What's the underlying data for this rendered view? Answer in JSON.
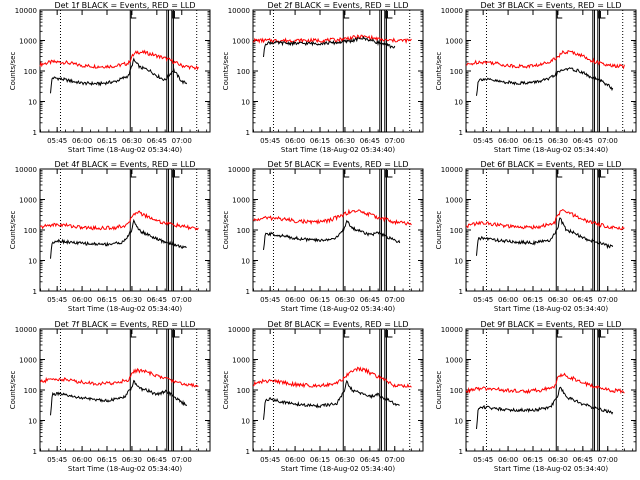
{
  "colors": {
    "events": "#000000",
    "lld": "#ff0000",
    "axes": "#000000"
  },
  "chart_data": [
    {
      "type": "line",
      "title": "Det 1f BLACK = Events, RED = LLD",
      "xlabel": "Start Time (18-Aug-02 05:34:40)",
      "ylabel": "Counts/sec",
      "xlim": [
        "05:34:40",
        "07:17"
      ],
      "ylim": [
        1,
        10000
      ],
      "yscale": "log",
      "grid": false,
      "xticks": [
        "05:45",
        "06:00",
        "06:15",
        "06:30",
        "06:45",
        "07:00"
      ],
      "yticks": [
        "1",
        "10",
        "100",
        "1000",
        "10000"
      ],
      "series": [
        {
          "color": "red",
          "x": [
            "05:34",
            "05:42",
            "05:50",
            "06:00",
            "06:10",
            "06:20",
            "06:28",
            "06:30",
            "06:33",
            "06:38",
            "06:43",
            "06:48",
            "06:52",
            "06:56",
            "07:00",
            "07:05",
            "07:10"
          ],
          "y": [
            160,
            200,
            190,
            150,
            140,
            145,
            180,
            300,
            420,
            400,
            340,
            280,
            240,
            190,
            150,
            135,
            120
          ]
        },
        {
          "color": "black",
          "x": [
            "05:41",
            "05:42",
            "05:45",
            "05:55",
            "06:00",
            "06:10",
            "06:20",
            "06:28",
            "06:30",
            "06:31",
            "06:35",
            "06:40",
            "06:45",
            "06:50",
            "06:55",
            "07:00",
            "07:03"
          ],
          "y": [
            20,
            60,
            58,
            45,
            40,
            38,
            45,
            70,
            150,
            230,
            130,
            110,
            70,
            50,
            110,
            45,
            40
          ]
        }
      ],
      "markers": {
        "dotted": [
          "05:47",
          "07:09"
        ],
        "solid": [
          "06:29",
          "06:51",
          "06:52",
          "06:54",
          "06:55"
        ]
      }
    },
    {
      "type": "line",
      "title": "Det 2f BLACK = Events, RED = LLD",
      "xlabel": "Start Time (18-Aug-02 05:34:40)",
      "ylabel": "Counts/sec",
      "xlim": [
        "05:34:40",
        "07:17"
      ],
      "ylim": [
        1,
        10000
      ],
      "yscale": "log",
      "grid": false,
      "xticks": [
        "05:45",
        "06:00",
        "06:15",
        "06:30",
        "06:45",
        "07:00"
      ],
      "yticks": [
        "1",
        "10",
        "100",
        "1000",
        "10000"
      ],
      "series": [
        {
          "color": "red",
          "x": [
            "05:34",
            "05:45",
            "06:00",
            "06:15",
            "06:25",
            "06:35",
            "06:40",
            "06:45",
            "06:50",
            "06:55",
            "07:00",
            "07:10"
          ],
          "y": [
            1000,
            1000,
            1000,
            1000,
            1050,
            1250,
            1350,
            1250,
            1100,
            1000,
            1000,
            1000
          ]
        },
        {
          "color": "black",
          "x": [
            "05:41",
            "05:42",
            "05:45",
            "06:00",
            "06:15",
            "06:25",
            "06:35",
            "06:40",
            "06:45",
            "06:50",
            "06:55",
            "07:00"
          ],
          "y": [
            300,
            800,
            850,
            800,
            800,
            850,
            1000,
            1200,
            1050,
            850,
            700,
            600
          ]
        }
      ],
      "markers": {
        "dotted": [
          "05:47",
          "07:09"
        ],
        "solid": [
          "06:29",
          "06:51",
          "06:52",
          "06:54",
          "06:55"
        ]
      }
    },
    {
      "type": "line",
      "title": "Det 3f BLACK = Events, RED = LLD",
      "xlabel": "Start Time (18-Aug-02 05:34:40)",
      "ylabel": "Counts/sec",
      "xlim": [
        "05:34:40",
        "07:17"
      ],
      "ylim": [
        1,
        10000
      ],
      "yscale": "log",
      "grid": false,
      "xticks": [
        "05:45",
        "06:00",
        "06:15",
        "06:30",
        "06:45",
        "07:00"
      ],
      "yticks": [
        "1",
        "10",
        "100",
        "1000",
        "10000"
      ],
      "series": [
        {
          "color": "red",
          "x": [
            "05:34",
            "05:42",
            "05:50",
            "06:00",
            "06:10",
            "06:20",
            "06:28",
            "06:33",
            "06:38",
            "06:43",
            "06:48",
            "06:55",
            "07:00",
            "07:10"
          ],
          "y": [
            150,
            200,
            190,
            150,
            140,
            160,
            250,
            400,
            420,
            350,
            250,
            180,
            150,
            140
          ]
        },
        {
          "color": "black",
          "x": [
            "05:41",
            "05:42",
            "05:45",
            "05:55",
            "06:05",
            "06:15",
            "06:25",
            "06:30",
            "06:35",
            "06:40",
            "06:45",
            "06:50",
            "06:55",
            "07:00",
            "07:03"
          ],
          "y": [
            15,
            50,
            55,
            45,
            40,
            42,
            55,
            90,
            120,
            110,
            90,
            60,
            50,
            35,
            25
          ]
        }
      ],
      "markers": {
        "dotted": [
          "05:47",
          "07:09"
        ],
        "solid": [
          "06:29",
          "06:51",
          "06:52",
          "06:54",
          "06:55"
        ]
      }
    },
    {
      "type": "line",
      "title": "Det 4f BLACK = Events, RED = LLD",
      "xlabel": "Start Time (18-Aug-02 05:34:40)",
      "ylabel": "Counts/sec",
      "xlim": [
        "05:34:40",
        "07:17"
      ],
      "ylim": [
        1,
        10000
      ],
      "yscale": "log",
      "grid": false,
      "xticks": [
        "05:45",
        "06:00",
        "06:15",
        "06:30",
        "06:45",
        "07:00"
      ],
      "yticks": [
        "1",
        "10",
        "100",
        "1000",
        "10000"
      ],
      "series": [
        {
          "color": "red",
          "x": [
            "05:34",
            "05:42",
            "05:50",
            "06:00",
            "06:10",
            "06:20",
            "06:28",
            "06:30",
            "06:33",
            "06:38",
            "06:43",
            "06:48",
            "06:55",
            "07:00",
            "07:10"
          ],
          "y": [
            120,
            150,
            145,
            120,
            115,
            120,
            150,
            300,
            400,
            300,
            230,
            180,
            150,
            130,
            110
          ]
        },
        {
          "color": "black",
          "x": [
            "05:41",
            "05:42",
            "05:45",
            "05:55",
            "06:05",
            "06:15",
            "06:25",
            "06:30",
            "06:31",
            "06:35",
            "06:40",
            "06:45",
            "06:50",
            "06:55",
            "07:00",
            "07:03"
          ],
          "y": [
            12,
            40,
            45,
            38,
            35,
            34,
            40,
            100,
            200,
            90,
            70,
            50,
            40,
            35,
            28,
            25
          ]
        }
      ],
      "markers": {
        "dotted": [
          "05:47",
          "07:09"
        ],
        "solid": [
          "06:29",
          "06:51",
          "06:52",
          "06:54",
          "06:55"
        ]
      }
    },
    {
      "type": "line",
      "title": "Det 5f BLACK = Events, RED = LLD",
      "xlabel": "Start Time (18-Aug-02 05:34:40)",
      "ylabel": "Counts/sec",
      "xlim": [
        "05:34:40",
        "07:17"
      ],
      "ylim": [
        1,
        10000
      ],
      "yscale": "log",
      "grid": false,
      "xticks": [
        "05:45",
        "06:00",
        "06:15",
        "06:30",
        "06:45",
        "07:00"
      ],
      "yticks": [
        "1",
        "10",
        "100",
        "1000",
        "10000"
      ],
      "series": [
        {
          "color": "red",
          "x": [
            "05:34",
            "05:42",
            "05:50",
            "06:00",
            "06:10",
            "06:20",
            "06:28",
            "06:33",
            "06:38",
            "06:43",
            "06:48",
            "06:55",
            "07:00",
            "07:10"
          ],
          "y": [
            200,
            250,
            240,
            200,
            180,
            200,
            300,
            400,
            420,
            350,
            280,
            220,
            180,
            160
          ]
        },
        {
          "color": "black",
          "x": [
            "05:41",
            "05:42",
            "05:45",
            "05:55",
            "06:05",
            "06:15",
            "06:25",
            "06:30",
            "06:31",
            "06:35",
            "06:40",
            "06:45",
            "06:50",
            "06:55",
            "07:00",
            "07:03"
          ],
          "y": [
            20,
            70,
            75,
            60,
            50,
            45,
            55,
            120,
            200,
            110,
            90,
            70,
            80,
            60,
            45,
            40
          ]
        }
      ],
      "markers": {
        "dotted": [
          "05:47",
          "07:09"
        ],
        "solid": [
          "06:29",
          "06:51",
          "06:52",
          "06:54",
          "06:55"
        ]
      }
    },
    {
      "type": "line",
      "title": "Det 6f BLACK = Events, RED = LLD",
      "xlabel": "Start Time (18-Aug-02 05:34:40)",
      "ylabel": "Counts/sec",
      "xlim": [
        "05:34:40",
        "07:17"
      ],
      "ylim": [
        1,
        10000
      ],
      "yscale": "log",
      "grid": false,
      "xticks": [
        "05:45",
        "06:00",
        "06:15",
        "06:30",
        "06:45",
        "07:00"
      ],
      "yticks": [
        "1",
        "10",
        "100",
        "1000",
        "10000"
      ],
      "series": [
        {
          "color": "red",
          "x": [
            "05:34",
            "05:42",
            "05:50",
            "06:00",
            "06:10",
            "06:20",
            "06:28",
            "06:30",
            "06:33",
            "06:38",
            "06:43",
            "06:48",
            "06:55",
            "07:00",
            "07:10"
          ],
          "y": [
            130,
            170,
            160,
            130,
            120,
            130,
            170,
            320,
            450,
            330,
            250,
            190,
            150,
            130,
            110
          ]
        },
        {
          "color": "black",
          "x": [
            "05:41",
            "05:42",
            "05:45",
            "05:55",
            "06:05",
            "06:15",
            "06:25",
            "06:30",
            "06:31",
            "06:35",
            "06:40",
            "06:45",
            "06:50",
            "06:55",
            "07:00",
            "07:03"
          ],
          "y": [
            15,
            50,
            55,
            45,
            40,
            38,
            45,
            110,
            250,
            100,
            80,
            55,
            45,
            38,
            30,
            28
          ]
        }
      ],
      "markers": {
        "dotted": [
          "05:47",
          "07:09"
        ],
        "solid": [
          "06:29",
          "06:51",
          "06:52",
          "06:54",
          "06:55"
        ]
      }
    },
    {
      "type": "line",
      "title": "Det 7f BLACK = Events, RED = LLD",
      "xlabel": "Start Time (18-Aug-02 05:34:40)",
      "ylabel": "Counts/sec",
      "xlim": [
        "05:34:40",
        "07:17"
      ],
      "ylim": [
        1,
        10000
      ],
      "yscale": "log",
      "grid": false,
      "xticks": [
        "05:45",
        "06:00",
        "06:15",
        "06:30",
        "06:45",
        "07:00"
      ],
      "yticks": [
        "1",
        "10",
        "100",
        "1000",
        "10000"
      ],
      "series": [
        {
          "color": "red",
          "x": [
            "05:34",
            "05:42",
            "05:50",
            "06:00",
            "06:10",
            "06:20",
            "06:28",
            "06:30",
            "06:33",
            "06:38",
            "06:43",
            "06:48",
            "06:55",
            "07:00",
            "07:10"
          ],
          "y": [
            180,
            230,
            220,
            180,
            160,
            170,
            220,
            350,
            450,
            400,
            320,
            260,
            200,
            160,
            140
          ]
        },
        {
          "color": "black",
          "x": [
            "05:41",
            "05:42",
            "05:45",
            "05:55",
            "06:05",
            "06:15",
            "06:25",
            "06:30",
            "06:31",
            "06:35",
            "06:40",
            "06:45",
            "06:50",
            "06:55",
            "07:00",
            "07:03"
          ],
          "y": [
            15,
            70,
            75,
            60,
            50,
            45,
            55,
            120,
            200,
            110,
            95,
            70,
            90,
            65,
            40,
            30
          ]
        }
      ],
      "markers": {
        "dotted": [
          "05:47",
          "07:09"
        ],
        "solid": [
          "06:29",
          "06:51",
          "06:52",
          "06:54",
          "06:55"
        ]
      }
    },
    {
      "type": "line",
      "title": "Det 8f BLACK = Events, RED = LLD",
      "xlabel": "Start Time (18-Aug-02 05:34:40)",
      "ylabel": "Counts/sec",
      "xlim": [
        "05:34:40",
        "07:17"
      ],
      "ylim": [
        1,
        10000
      ],
      "yscale": "log",
      "grid": false,
      "xticks": [
        "05:45",
        "06:00",
        "06:15",
        "06:30",
        "06:45",
        "07:00"
      ],
      "yticks": [
        "1",
        "10",
        "100",
        "1000",
        "10000"
      ],
      "series": [
        {
          "color": "red",
          "x": [
            "05:34",
            "05:42",
            "05:50",
            "06:00",
            "06:10",
            "06:20",
            "06:28",
            "06:33",
            "06:38",
            "06:43",
            "06:48",
            "06:55",
            "07:00",
            "07:10"
          ],
          "y": [
            150,
            200,
            190,
            150,
            140,
            150,
            200,
            400,
            500,
            420,
            300,
            200,
            140,
            130
          ]
        },
        {
          "color": "black",
          "x": [
            "05:41",
            "05:42",
            "05:45",
            "05:55",
            "06:05",
            "06:15",
            "06:25",
            "06:30",
            "06:31",
            "06:35",
            "06:40",
            "06:45",
            "06:50",
            "06:55",
            "07:00",
            "07:03"
          ],
          "y": [
            10,
            45,
            50,
            38,
            32,
            30,
            35,
            100,
            180,
            90,
            80,
            60,
            70,
            50,
            35,
            30
          ]
        }
      ],
      "markers": {
        "dotted": [
          "05:47",
          "07:09"
        ],
        "solid": [
          "06:29",
          "06:51",
          "06:52",
          "06:54",
          "06:55"
        ]
      }
    },
    {
      "type": "line",
      "title": "Det 9f BLACK = Events, RED = LLD",
      "xlabel": "Start Time (18-Aug-02 05:34:40)",
      "ylabel": "Counts/sec",
      "xlim": [
        "05:34:40",
        "07:17"
      ],
      "ylim": [
        1,
        10000
      ],
      "yscale": "log",
      "grid": false,
      "xticks": [
        "05:45",
        "06:00",
        "06:15",
        "06:30",
        "06:45",
        "07:00"
      ],
      "yticks": [
        "1",
        "10",
        "100",
        "1000",
        "10000"
      ],
      "series": [
        {
          "color": "red",
          "x": [
            "05:34",
            "05:42",
            "05:50",
            "06:00",
            "06:10",
            "06:20",
            "06:28",
            "06:30",
            "06:33",
            "06:38",
            "06:43",
            "06:48",
            "06:55",
            "07:00",
            "07:10"
          ],
          "y": [
            90,
            110,
            110,
            95,
            90,
            100,
            130,
            250,
            320,
            250,
            200,
            150,
            120,
            100,
            90
          ]
        },
        {
          "color": "black",
          "x": [
            "05:41",
            "05:42",
            "05:45",
            "05:55",
            "06:05",
            "06:15",
            "06:25",
            "06:30",
            "06:31",
            "06:35",
            "06:40",
            "06:45",
            "06:50",
            "06:55",
            "07:00",
            "07:03"
          ],
          "y": [
            5,
            25,
            28,
            24,
            22,
            22,
            26,
            60,
            130,
            60,
            45,
            35,
            28,
            24,
            20,
            18
          ]
        }
      ],
      "markers": {
        "dotted": [
          "05:47",
          "07:09"
        ],
        "solid": [
          "06:29",
          "06:51",
          "06:52",
          "06:54",
          "06:55"
        ]
      }
    }
  ]
}
